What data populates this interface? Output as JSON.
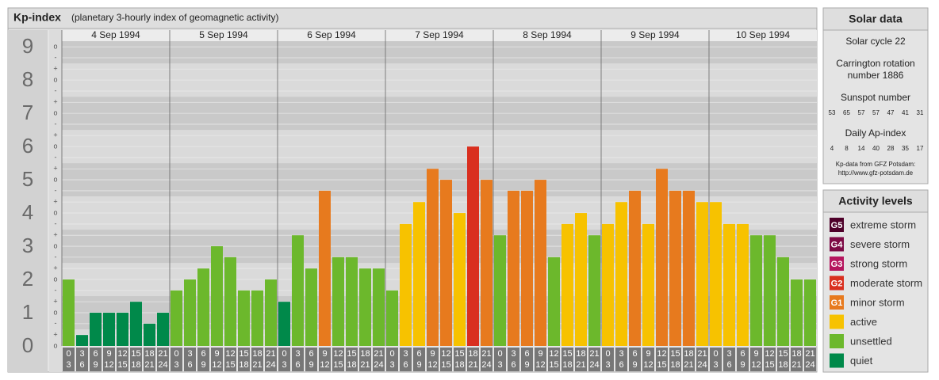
{
  "chart_data": {
    "type": "bar",
    "title": "Kp-index",
    "subtitle": "(planetary 3-hourly index of geomagnetic activity)",
    "ylim": [
      0,
      9.17
    ],
    "yticks": [
      0,
      1,
      2,
      3,
      4,
      5,
      6,
      7,
      8,
      9
    ],
    "minor_yticks": [
      {
        "value": 0,
        "label": "o"
      },
      {
        "value": 0.33,
        "label": "+"
      },
      {
        "value": 0.67,
        "label": "-"
      },
      {
        "value": 1,
        "label": "o"
      },
      {
        "value": 1.33,
        "label": "+"
      },
      {
        "value": 1.67,
        "label": "-"
      },
      {
        "value": 2,
        "label": "o"
      },
      {
        "value": 2.33,
        "label": "+"
      },
      {
        "value": 2.67,
        "label": "-"
      },
      {
        "value": 3,
        "label": "o"
      },
      {
        "value": 3.33,
        "label": "+"
      },
      {
        "value": 3.67,
        "label": "-"
      },
      {
        "value": 4,
        "label": "o"
      },
      {
        "value": 4.33,
        "label": "+"
      },
      {
        "value": 4.67,
        "label": "-"
      },
      {
        "value": 5,
        "label": "o"
      },
      {
        "value": 5.33,
        "label": "+"
      },
      {
        "value": 5.67,
        "label": "-"
      },
      {
        "value": 6,
        "label": "o"
      },
      {
        "value": 6.33,
        "label": "+"
      },
      {
        "value": 6.67,
        "label": "-"
      },
      {
        "value": 7,
        "label": "o"
      },
      {
        "value": 7.33,
        "label": "+"
      },
      {
        "value": 7.67,
        "label": "-"
      },
      {
        "value": 8,
        "label": "o"
      },
      {
        "value": 8.33,
        "label": "+"
      },
      {
        "value": 8.67,
        "label": "-"
      },
      {
        "value": 9,
        "label": "o"
      }
    ],
    "hour_labels": [
      [
        "0",
        "3"
      ],
      [
        "3",
        "6"
      ],
      [
        "6",
        "9"
      ],
      [
        "9",
        "12"
      ],
      [
        "12",
        "15"
      ],
      [
        "15",
        "18"
      ],
      [
        "18",
        "21"
      ],
      [
        "21",
        "24"
      ]
    ],
    "days": [
      {
        "name": "4 Sep 1994",
        "values": [
          2,
          0.33,
          1,
          1,
          1,
          1.33,
          0.67,
          1
        ],
        "colors": [
          "#6cb82c",
          "#00894a",
          "#00894a",
          "#00894a",
          "#00894a",
          "#00894a",
          "#00894a",
          "#00894a"
        ]
      },
      {
        "name": "5 Sep 1994",
        "values": [
          1.67,
          2,
          2.33,
          3,
          2.67,
          1.67,
          1.67,
          2
        ],
        "colors": [
          "#6cb82c",
          "#6cb82c",
          "#6cb82c",
          "#6cb82c",
          "#6cb82c",
          "#6cb82c",
          "#6cb82c",
          "#6cb82c"
        ]
      },
      {
        "name": "6 Sep 1994",
        "values": [
          1.33,
          3.33,
          2.33,
          4.67,
          2.67,
          2.67,
          2.33,
          2.33
        ],
        "colors": [
          "#00894a",
          "#6cb82c",
          "#6cb82c",
          "#e77a1e",
          "#6cb82c",
          "#6cb82c",
          "#6cb82c",
          "#6cb82c"
        ]
      },
      {
        "name": "7 Sep 1994",
        "values": [
          1.67,
          3.67,
          4.33,
          5.33,
          5,
          4,
          6,
          5
        ],
        "colors": [
          "#6cb82c",
          "#f7c200",
          "#f7c200",
          "#e77a1e",
          "#e77a1e",
          "#f7c200",
          "#d92f1f",
          "#e77a1e"
        ]
      },
      {
        "name": "8 Sep 1994",
        "values": [
          3.33,
          4.67,
          4.67,
          5,
          2.67,
          3.67,
          4,
          3.33
        ],
        "colors": [
          "#6cb82c",
          "#e77a1e",
          "#e77a1e",
          "#e77a1e",
          "#6cb82c",
          "#f7c200",
          "#f7c200",
          "#6cb82c"
        ]
      },
      {
        "name": "9 Sep 1994",
        "values": [
          3.67,
          4.33,
          4.67,
          3.67,
          5.33,
          4.67,
          4.67,
          4.33
        ],
        "colors": [
          "#f7c200",
          "#f7c200",
          "#e77a1e",
          "#f7c200",
          "#e77a1e",
          "#e77a1e",
          "#e77a1e",
          "#f7c200"
        ]
      },
      {
        "name": "10 Sep 1994",
        "values": [
          4.33,
          3.67,
          3.67,
          3.33,
          3.33,
          2.67,
          2,
          2
        ],
        "colors": [
          "#f7c200",
          "#f7c200",
          "#f7c200",
          "#6cb82c",
          "#6cb82c",
          "#6cb82c",
          "#6cb82c",
          "#6cb82c"
        ]
      }
    ]
  },
  "solar_data": {
    "title": "Solar data",
    "cycle": "Solar cycle 22",
    "carrington": [
      "Carrington rotation",
      "number 1886"
    ],
    "sunspot_title": "Sunspot number",
    "sunspot": [
      53,
      65,
      57,
      57,
      47,
      41,
      31
    ],
    "ap_title": "Daily Ap-index",
    "ap": [
      4,
      8,
      14,
      40,
      28,
      35,
      17
    ],
    "source": "Kp-data from GFZ Potsdam:",
    "url": "http://www.gfz-potsdam.de"
  },
  "activity_levels": {
    "title": "Activity levels",
    "items": [
      {
        "code": "G5",
        "name": "extreme storm",
        "color": "#4e0029"
      },
      {
        "code": "G4",
        "name": "severe storm",
        "color": "#7d0a45"
      },
      {
        "code": "G3",
        "name": "strong storm",
        "color": "#b5155e"
      },
      {
        "code": "G2",
        "name": "moderate storm",
        "color": "#d92f1f"
      },
      {
        "code": "G1",
        "name": "minor storm",
        "color": "#e77a1e"
      },
      {
        "name": "active",
        "color": "#f7c200"
      },
      {
        "name": "unsettled",
        "color": "#6cb82c"
      },
      {
        "name": "quiet",
        "color": "#00894a"
      }
    ]
  }
}
